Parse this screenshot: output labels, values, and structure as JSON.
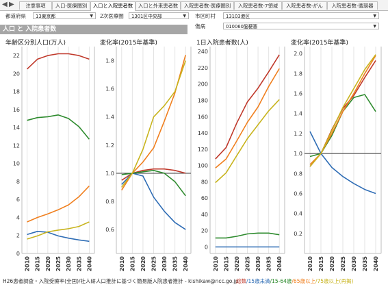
{
  "tabs": [
    "注意事項",
    "入口-医療圏別",
    "入口と入院患者数",
    "入口と外来患者数",
    "入院患者数-医療圏別",
    "入院患者数-7領域",
    "入院患者数-がん",
    "入院患者数-循環器"
  ],
  "active_tab": 2,
  "nav": {
    "left": "◀",
    "right": "▶"
  },
  "filters": {
    "prefecture_label": "都道府県",
    "prefecture_value": "13東京都",
    "area2_label": "2次医療圏",
    "area2_value": "1301区中央部",
    "city_label": "市区町村",
    "city_value": "13103港区",
    "disease_label": "傷病",
    "disease_value": "010060脳梗塞"
  },
  "section_title": "人口 と 入院患者数",
  "titles": {
    "t1": "年齢区分別人口(万人)",
    "t2": "変化率(2015年基準)",
    "t3": "1日入院患者数(人)",
    "t4": "変化率(2015年基準)"
  },
  "footer_text": "H26患者調査・入院受療率(全国)/社人研人口推計に基づく簡易版入院患者推計 - kishikaw@ncc.go.jp",
  "legend": [
    {
      "text": "総数",
      "color": "#c0392b"
    },
    {
      "text": "/15歳未満",
      "color": "#2f6db5"
    },
    {
      "text": "/15-64歳",
      "color": "#2e8b2e"
    },
    {
      "text": "/65歳以上",
      "color": "#f07f1e"
    },
    {
      "text": "/75歳以上(再掲)",
      "color": "#c8b41e"
    }
  ],
  "colors": {
    "total": "#c0392b",
    "under15": "#2f6db5",
    "age15_64": "#2e8b2e",
    "over65": "#f07f1e",
    "over75": "#c8b41e"
  },
  "chart_data": [
    {
      "type": "line",
      "title": "年齢区分別人口(万人)",
      "x": [
        "2010",
        "2015",
        "2020",
        "2025",
        "2030",
        "2035",
        "2040"
      ],
      "ylim": [
        0,
        23
      ],
      "yticks": [
        0,
        2,
        4,
        6,
        8,
        10,
        12,
        14,
        16,
        18,
        20,
        22
      ],
      "series": [
        {
          "name": "総数",
          "color": "#c0392b",
          "values": [
            20.5,
            21.6,
            22.0,
            22.2,
            22.2,
            22.0,
            21.6
          ]
        },
        {
          "name": "15歳未満",
          "color": "#2f6db5",
          "values": [
            2.1,
            2.45,
            2.35,
            1.95,
            1.7,
            1.5,
            1.35
          ]
        },
        {
          "name": "15-64歳",
          "color": "#2e8b2e",
          "values": [
            14.8,
            15.1,
            15.2,
            15.4,
            15.0,
            14.1,
            12.7
          ]
        },
        {
          "name": "65歳以上",
          "color": "#f07f1e",
          "values": [
            3.5,
            4.0,
            4.4,
            4.85,
            5.4,
            6.3,
            7.5
          ]
        },
        {
          "name": "75歳以上(再掲)",
          "color": "#c8b41e",
          "values": [
            1.6,
            1.95,
            2.4,
            2.6,
            2.75,
            3.0,
            3.5
          ]
        }
      ]
    },
    {
      "type": "line",
      "title": "変化率(2015年基準)",
      "x": [
        "2010",
        "2015",
        "2020",
        "2025",
        "2030",
        "2035",
        "2040"
      ],
      "ylim": [
        0.43,
        1.9
      ],
      "yticks": [
        0.6,
        0.8,
        1.0,
        1.2,
        1.4,
        1.6,
        1.8
      ],
      "reference_line": 1.0,
      "series": [
        {
          "name": "総数",
          "color": "#c0392b",
          "values": [
            0.95,
            1.0,
            1.02,
            1.03,
            1.03,
            1.02,
            1.0
          ]
        },
        {
          "name": "15歳未満",
          "color": "#2f6db5",
          "values": [
            0.92,
            1.0,
            0.98,
            0.83,
            0.73,
            0.65,
            0.6
          ]
        },
        {
          "name": "15-64歳",
          "color": "#2e8b2e",
          "values": [
            0.99,
            1.0,
            1.01,
            1.02,
            1.0,
            0.94,
            0.84
          ]
        },
        {
          "name": "65歳以上",
          "color": "#f07f1e",
          "values": [
            0.88,
            1.0,
            1.08,
            1.18,
            1.37,
            1.57,
            1.84
          ]
        },
        {
          "name": "75歳以上(再掲)",
          "color": "#c8b41e",
          "values": [
            0.9,
            1.0,
            1.17,
            1.4,
            1.48,
            1.58,
            1.8
          ]
        }
      ]
    },
    {
      "type": "line",
      "title": "1日入院患者数(人)",
      "x": [
        "2010",
        "2015",
        "2020",
        "2025",
        "2030",
        "2035",
        "2040"
      ],
      "ylim": [
        -8,
        246
      ],
      "yticks": [
        0,
        20,
        40,
        60,
        80,
        100,
        120,
        140,
        160,
        180,
        200,
        220,
        240
      ],
      "series": [
        {
          "name": "総数",
          "color": "#c0392b",
          "values": [
            108,
            122,
            152,
            178,
            195,
            215,
            236
          ]
        },
        {
          "name": "15歳未満",
          "color": "#2f6db5",
          "values": [
            0,
            0,
            0,
            0,
            0,
            0,
            0
          ]
        },
        {
          "name": "15-64歳",
          "color": "#2e8b2e",
          "values": [
            11,
            11,
            13,
            16,
            17,
            17,
            15
          ]
        },
        {
          "name": "65歳以上",
          "color": "#f07f1e",
          "values": [
            97,
            108,
            130,
            153,
            172,
            197,
            219
          ]
        },
        {
          "name": "75歳以上(再掲)",
          "color": "#c8b41e",
          "values": [
            79,
            91,
            112,
            133,
            150,
            167,
            181
          ]
        }
      ]
    },
    {
      "type": "line",
      "title": "変化率(2015年基準)",
      "x": [
        "2010",
        "2015",
        "2020",
        "2025",
        "2030",
        "2035",
        "2040"
      ],
      "ylim": [
        0.0,
        2.07
      ],
      "yticks": [
        0.2,
        0.4,
        0.6,
        0.8,
        1.0,
        1.2,
        1.4,
        1.6,
        1.8,
        2.0
      ],
      "reference_line": 1.0,
      "series": [
        {
          "name": "総数",
          "color": "#c0392b",
          "values": [
            0.87,
            1.0,
            1.24,
            1.45,
            1.58,
            1.76,
            1.93
          ]
        },
        {
          "name": "15歳未満",
          "color": "#2f6db5",
          "values": [
            1.22,
            1.0,
            0.86,
            0.77,
            0.7,
            0.64,
            0.6
          ]
        },
        {
          "name": "15-64歳",
          "color": "#2e8b2e",
          "values": [
            0.97,
            1.0,
            1.18,
            1.42,
            1.56,
            1.59,
            1.42
          ]
        },
        {
          "name": "65歳以上",
          "color": "#f07f1e",
          "values": [
            0.89,
            1.0,
            1.2,
            1.42,
            1.6,
            1.8,
            1.98
          ]
        },
        {
          "name": "75歳以上(再掲)",
          "color": "#c8b41e",
          "values": [
            0.87,
            1.0,
            1.23,
            1.46,
            1.65,
            1.84,
            1.99
          ]
        }
      ]
    }
  ]
}
